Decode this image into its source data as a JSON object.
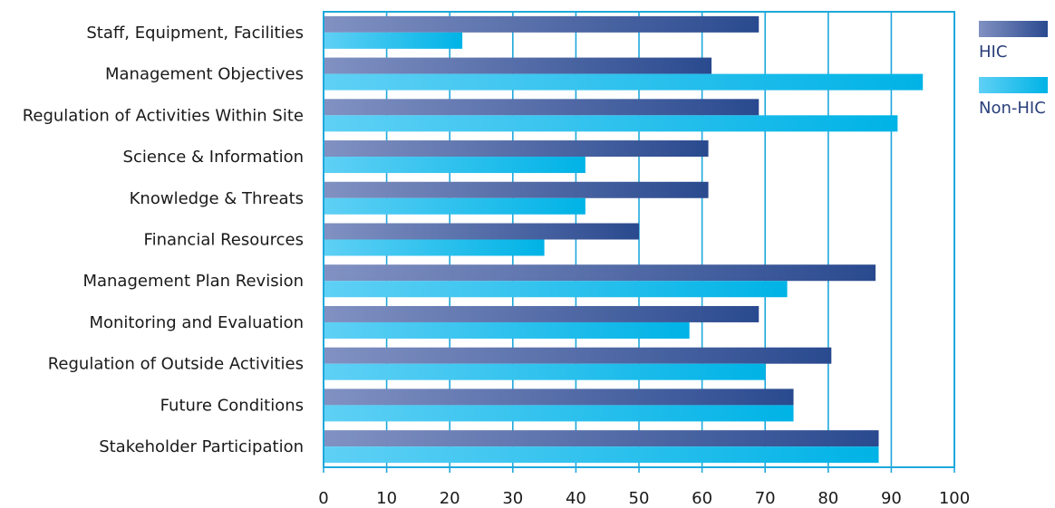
{
  "chart_data": {
    "type": "bar",
    "orientation": "horizontal",
    "categories": [
      "Staff, Equipment, Facilities",
      "Management Objectives",
      "Regulation of Activities Within Site",
      "Science & Information",
      "Knowledge & Threats",
      "Financial Resources",
      "Management Plan Revision",
      "Monitoring and Evaluation",
      "Regulation of Outside Activities",
      "Future Conditions",
      "Stakeholder Participation"
    ],
    "series": [
      {
        "name": "HIC",
        "values": [
          69,
          61.5,
          69,
          61,
          61,
          50,
          87.5,
          69,
          80.5,
          74.5,
          88
        ]
      },
      {
        "name": "Non-HIC",
        "values": [
          22,
          95,
          91,
          41.5,
          41.5,
          35,
          73.5,
          58,
          70,
          74.5,
          88
        ]
      }
    ],
    "xlim": [
      0,
      100
    ],
    "xticks": [
      "0",
      "10",
      "20",
      "30",
      "40",
      "50",
      "60",
      "70",
      "80",
      "90",
      "100"
    ],
    "grid": true,
    "legend_position": "top-right",
    "colors": {
      "HIC": [
        "#8191c2",
        "#2a4a8f"
      ],
      "Non-HIC": [
        "#5fd0f5",
        "#00b3e6"
      ],
      "frame": "#1fa8dc"
    },
    "title": "",
    "xlabel": "",
    "ylabel": ""
  }
}
